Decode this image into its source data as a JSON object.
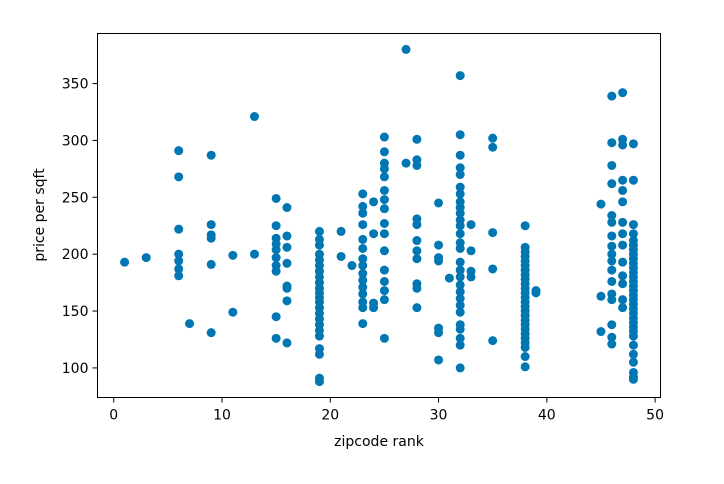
{
  "chart_data": {
    "type": "scatter",
    "xlabel": "zipcode rank",
    "ylabel": "price per sqft",
    "xlim": [
      -1.5,
      50.5
    ],
    "ylim": [
      74,
      394
    ],
    "xticks": [
      0,
      10,
      20,
      30,
      40,
      50
    ],
    "yticks": [
      100,
      150,
      200,
      250,
      300,
      350
    ],
    "grid": false,
    "marker_color": "#0077b3",
    "points": [
      [
        1,
        193
      ],
      [
        3,
        197
      ],
      [
        6,
        291
      ],
      [
        6,
        268
      ],
      [
        6,
        222
      ],
      [
        6,
        200
      ],
      [
        6,
        194
      ],
      [
        6,
        187
      ],
      [
        6,
        181
      ],
      [
        7,
        139
      ],
      [
        9,
        287
      ],
      [
        9,
        226
      ],
      [
        9,
        217
      ],
      [
        9,
        214
      ],
      [
        9,
        191
      ],
      [
        9,
        131
      ],
      [
        11,
        199
      ],
      [
        11,
        149
      ],
      [
        13,
        321
      ],
      [
        13,
        200
      ],
      [
        15,
        249
      ],
      [
        15,
        225
      ],
      [
        15,
        214
      ],
      [
        15,
        209
      ],
      [
        15,
        204
      ],
      [
        15,
        197
      ],
      [
        15,
        190
      ],
      [
        15,
        185
      ],
      [
        15,
        145
      ],
      [
        15,
        126
      ],
      [
        16,
        241
      ],
      [
        16,
        216
      ],
      [
        16,
        206
      ],
      [
        16,
        192
      ],
      [
        16,
        172
      ],
      [
        16,
        170
      ],
      [
        16,
        159
      ],
      [
        16,
        122
      ],
      [
        19,
        220
      ],
      [
        19,
        213
      ],
      [
        19,
        208
      ],
      [
        19,
        200
      ],
      [
        19,
        195
      ],
      [
        19,
        190
      ],
      [
        19,
        185
      ],
      [
        19,
        180
      ],
      [
        19,
        175
      ],
      [
        19,
        170
      ],
      [
        19,
        166
      ],
      [
        19,
        162
      ],
      [
        19,
        158
      ],
      [
        19,
        153
      ],
      [
        19,
        148
      ],
      [
        19,
        143
      ],
      [
        19,
        138
      ],
      [
        19,
        133
      ],
      [
        19,
        128
      ],
      [
        19,
        117
      ],
      [
        19,
        112
      ],
      [
        19,
        91
      ],
      [
        19,
        88
      ],
      [
        21,
        220
      ],
      [
        21,
        198
      ],
      [
        22,
        190
      ],
      [
        23,
        253
      ],
      [
        23,
        242
      ],
      [
        23,
        236
      ],
      [
        23,
        226
      ],
      [
        23,
        213
      ],
      [
        23,
        205
      ],
      [
        23,
        196
      ],
      [
        23,
        190
      ],
      [
        23,
        183
      ],
      [
        23,
        177
      ],
      [
        23,
        171
      ],
      [
        23,
        165
      ],
      [
        23,
        158
      ],
      [
        23,
        153
      ],
      [
        23,
        139
      ],
      [
        24,
        246
      ],
      [
        24,
        218
      ],
      [
        24,
        157
      ],
      [
        24,
        153
      ],
      [
        25,
        303
      ],
      [
        25,
        290
      ],
      [
        25,
        280
      ],
      [
        25,
        275
      ],
      [
        25,
        268
      ],
      [
        25,
        256
      ],
      [
        25,
        248
      ],
      [
        25,
        240
      ],
      [
        25,
        227
      ],
      [
        25,
        218
      ],
      [
        25,
        203
      ],
      [
        25,
        186
      ],
      [
        25,
        176
      ],
      [
        25,
        168
      ],
      [
        25,
        160
      ],
      [
        25,
        126
      ],
      [
        27,
        380
      ],
      [
        27,
        280
      ],
      [
        28,
        301
      ],
      [
        28,
        283
      ],
      [
        28,
        278
      ],
      [
        28,
        231
      ],
      [
        28,
        226
      ],
      [
        28,
        212
      ],
      [
        28,
        203
      ],
      [
        28,
        196
      ],
      [
        28,
        174
      ],
      [
        28,
        170
      ],
      [
        28,
        153
      ],
      [
        30,
        245
      ],
      [
        30,
        208
      ],
      [
        30,
        197
      ],
      [
        30,
        194
      ],
      [
        30,
        135
      ],
      [
        30,
        131
      ],
      [
        30,
        107
      ],
      [
        31,
        179
      ],
      [
        32,
        357
      ],
      [
        32,
        305
      ],
      [
        32,
        287
      ],
      [
        32,
        276
      ],
      [
        32,
        270
      ],
      [
        32,
        259
      ],
      [
        32,
        253
      ],
      [
        32,
        246
      ],
      [
        32,
        241
      ],
      [
        32,
        236
      ],
      [
        32,
        230
      ],
      [
        32,
        225
      ],
      [
        32,
        218
      ],
      [
        32,
        210
      ],
      [
        32,
        205
      ],
      [
        32,
        193
      ],
      [
        32,
        186
      ],
      [
        32,
        180
      ],
      [
        32,
        173
      ],
      [
        32,
        167
      ],
      [
        32,
        161
      ],
      [
        32,
        155
      ],
      [
        32,
        149
      ],
      [
        32,
        138
      ],
      [
        32,
        134
      ],
      [
        32,
        126
      ],
      [
        32,
        120
      ],
      [
        32,
        100
      ],
      [
        33,
        226
      ],
      [
        33,
        203
      ],
      [
        33,
        185
      ],
      [
        33,
        180
      ],
      [
        35,
        302
      ],
      [
        35,
        294
      ],
      [
        35,
        219
      ],
      [
        35,
        187
      ],
      [
        35,
        124
      ],
      [
        38,
        225
      ],
      [
        38,
        206
      ],
      [
        38,
        202
      ],
      [
        38,
        198
      ],
      [
        38,
        194
      ],
      [
        38,
        190
      ],
      [
        38,
        186
      ],
      [
        38,
        182
      ],
      [
        38,
        178
      ],
      [
        38,
        174
      ],
      [
        38,
        170
      ],
      [
        38,
        166
      ],
      [
        38,
        162
      ],
      [
        38,
        158
      ],
      [
        38,
        154
      ],
      [
        38,
        150
      ],
      [
        38,
        146
      ],
      [
        38,
        142
      ],
      [
        38,
        138
      ],
      [
        38,
        134
      ],
      [
        38,
        130
      ],
      [
        38,
        126
      ],
      [
        38,
        122
      ],
      [
        38,
        118
      ],
      [
        38,
        110
      ],
      [
        38,
        101
      ],
      [
        39,
        168
      ],
      [
        39,
        166
      ],
      [
        45,
        244
      ],
      [
        45,
        163
      ],
      [
        45,
        132
      ],
      [
        46,
        339
      ],
      [
        46,
        298
      ],
      [
        46,
        278
      ],
      [
        46,
        262
      ],
      [
        46,
        234
      ],
      [
        46,
        228
      ],
      [
        46,
        216
      ],
      [
        46,
        207
      ],
      [
        46,
        200
      ],
      [
        46,
        194
      ],
      [
        46,
        186
      ],
      [
        46,
        176
      ],
      [
        46,
        165
      ],
      [
        46,
        160
      ],
      [
        46,
        138
      ],
      [
        46,
        127
      ],
      [
        46,
        121
      ],
      [
        47,
        342
      ],
      [
        47,
        301
      ],
      [
        47,
        296
      ],
      [
        47,
        265
      ],
      [
        47,
        256
      ],
      [
        47,
        246
      ],
      [
        47,
        228
      ],
      [
        47,
        218
      ],
      [
        47,
        208
      ],
      [
        47,
        193
      ],
      [
        47,
        181
      ],
      [
        47,
        174
      ],
      [
        47,
        160
      ],
      [
        47,
        153
      ],
      [
        48,
        297
      ],
      [
        48,
        265
      ],
      [
        48,
        226
      ],
      [
        48,
        218
      ],
      [
        48,
        212
      ],
      [
        48,
        208
      ],
      [
        48,
        204
      ],
      [
        48,
        200
      ],
      [
        48,
        196
      ],
      [
        48,
        192
      ],
      [
        48,
        188
      ],
      [
        48,
        184
      ],
      [
        48,
        180
      ],
      [
        48,
        176
      ],
      [
        48,
        172
      ],
      [
        48,
        168
      ],
      [
        48,
        164
      ],
      [
        48,
        160
      ],
      [
        48,
        156
      ],
      [
        48,
        152
      ],
      [
        48,
        148
      ],
      [
        48,
        144
      ],
      [
        48,
        140
      ],
      [
        48,
        136
      ],
      [
        48,
        132
      ],
      [
        48,
        128
      ],
      [
        48,
        120
      ],
      [
        48,
        112
      ],
      [
        48,
        105
      ],
      [
        48,
        96
      ],
      [
        48,
        92
      ],
      [
        48,
        90
      ]
    ]
  }
}
